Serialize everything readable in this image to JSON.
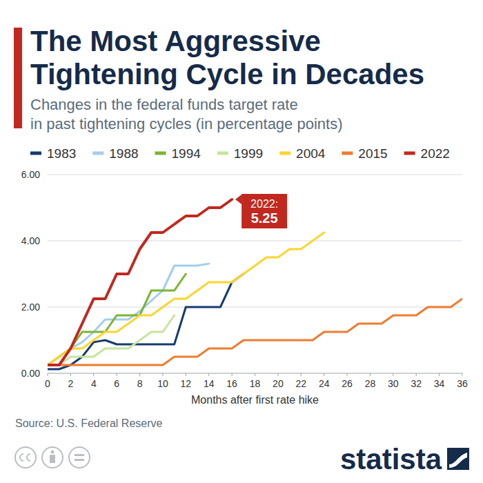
{
  "chart_data": {
    "type": "line",
    "title": "The Most Aggressive Tightening Cycle in Decades",
    "subtitle": "Changes in the federal funds target rate in past tightening cycles (in percentage points)",
    "x_label": "Months after first rate hike",
    "source": "Source: U.S. Federal Reserve",
    "brand": "statista",
    "x": [
      0,
      1,
      2,
      3,
      4,
      5,
      6,
      7,
      8,
      9,
      10,
      11,
      12,
      13,
      14,
      15,
      16,
      17,
      18,
      19,
      20,
      21,
      22,
      23,
      24,
      25,
      26,
      27,
      28,
      29,
      30,
      31,
      32,
      33,
      34,
      35,
      36
    ],
    "series": [
      {
        "name": "1983",
        "color": "#163a6e",
        "values": [
          0.125,
          0.125,
          0.25,
          0.5,
          0.94,
          1.0,
          0.875,
          0.875,
          0.875,
          0.875,
          0.875,
          0.875,
          2.0,
          2.0,
          2.0,
          2.0,
          2.75,
          3.0,
          null,
          null,
          null,
          null,
          null,
          null,
          null,
          null,
          null,
          null,
          null,
          null,
          null,
          null,
          null,
          null,
          null,
          null,
          null
        ]
      },
      {
        "name": "1988",
        "color": "#a3cdee",
        "values": [
          0.25,
          0.5,
          0.75,
          0.94,
          1.25,
          1.625,
          1.625,
          1.625,
          1.875,
          2.19,
          2.5,
          3.25,
          3.25,
          3.25,
          3.31,
          null,
          null,
          null,
          null,
          null,
          null,
          null,
          null,
          null,
          null,
          null,
          null,
          null,
          null,
          null,
          null,
          null,
          null,
          null,
          null,
          null,
          null
        ]
      },
      {
        "name": "1994",
        "color": "#7ab530",
        "values": [
          0.25,
          0.5,
          0.75,
          1.25,
          1.25,
          1.25,
          1.75,
          1.75,
          1.75,
          2.5,
          2.5,
          2.5,
          3.0,
          null,
          null,
          null,
          null,
          null,
          null,
          null,
          null,
          null,
          null,
          null,
          null,
          null,
          null,
          null,
          null,
          null,
          null,
          null,
          null,
          null,
          null,
          null,
          null
        ]
      },
      {
        "name": "1999",
        "color": "#c6e59c",
        "values": [
          0.25,
          0.25,
          0.5,
          0.5,
          0.5,
          0.75,
          0.75,
          0.75,
          1.0,
          1.25,
          1.25,
          1.75,
          null,
          null,
          null,
          null,
          null,
          null,
          null,
          null,
          null,
          null,
          null,
          null,
          null,
          null,
          null,
          null,
          null,
          null,
          null,
          null,
          null,
          null,
          null,
          null,
          null
        ]
      },
      {
        "name": "2004",
        "color": "#fdd52d",
        "values": [
          0.25,
          0.5,
          0.75,
          0.75,
          1.0,
          1.25,
          1.25,
          1.5,
          1.75,
          1.75,
          2.0,
          2.25,
          2.25,
          2.5,
          2.75,
          2.75,
          2.75,
          3.0,
          3.25,
          3.5,
          3.5,
          3.75,
          3.75,
          4.0,
          4.25,
          null,
          null,
          null,
          null,
          null,
          null,
          null,
          null,
          null,
          null,
          null,
          null
        ]
      },
      {
        "name": "2015",
        "color": "#f07b2f",
        "values": [
          0.25,
          0.25,
          0.25,
          0.25,
          0.25,
          0.25,
          0.25,
          0.25,
          0.25,
          0.25,
          0.25,
          0.5,
          0.5,
          0.5,
          0.75,
          0.75,
          0.75,
          1.0,
          1.0,
          1.0,
          1.0,
          1.0,
          1.0,
          1.0,
          1.25,
          1.25,
          1.25,
          1.5,
          1.5,
          1.5,
          1.75,
          1.75,
          1.75,
          2.0,
          2.0,
          2.0,
          2.25
        ]
      },
      {
        "name": "2022",
        "color": "#c1281f",
        "values": [
          0.25,
          0.25,
          0.75,
          1.5,
          2.25,
          2.25,
          3.0,
          3.0,
          3.75,
          4.25,
          4.25,
          4.5,
          4.75,
          4.75,
          5.0,
          5.0,
          5.25,
          null,
          null,
          null,
          null,
          null,
          null,
          null,
          null,
          null,
          null,
          null,
          null,
          null,
          null,
          null,
          null,
          null,
          null,
          null,
          null
        ]
      }
    ],
    "xlim": [
      0,
      36
    ],
    "ylim": [
      0,
      6
    ],
    "xticks": [
      0,
      2,
      4,
      6,
      8,
      10,
      12,
      14,
      16,
      18,
      20,
      22,
      24,
      26,
      28,
      30,
      32,
      34,
      36
    ],
    "yticks": [
      {
        "value": 0,
        "label": "0.00"
      },
      {
        "value": 2,
        "label": "2.00"
      },
      {
        "value": 4,
        "label": "4.00"
      },
      {
        "value": 6,
        "label": "6.00"
      }
    ],
    "grid": true,
    "legend": "top",
    "annotations": [
      {
        "text": "2022:",
        "value": 5.25,
        "x": 16
      }
    ]
  }
}
